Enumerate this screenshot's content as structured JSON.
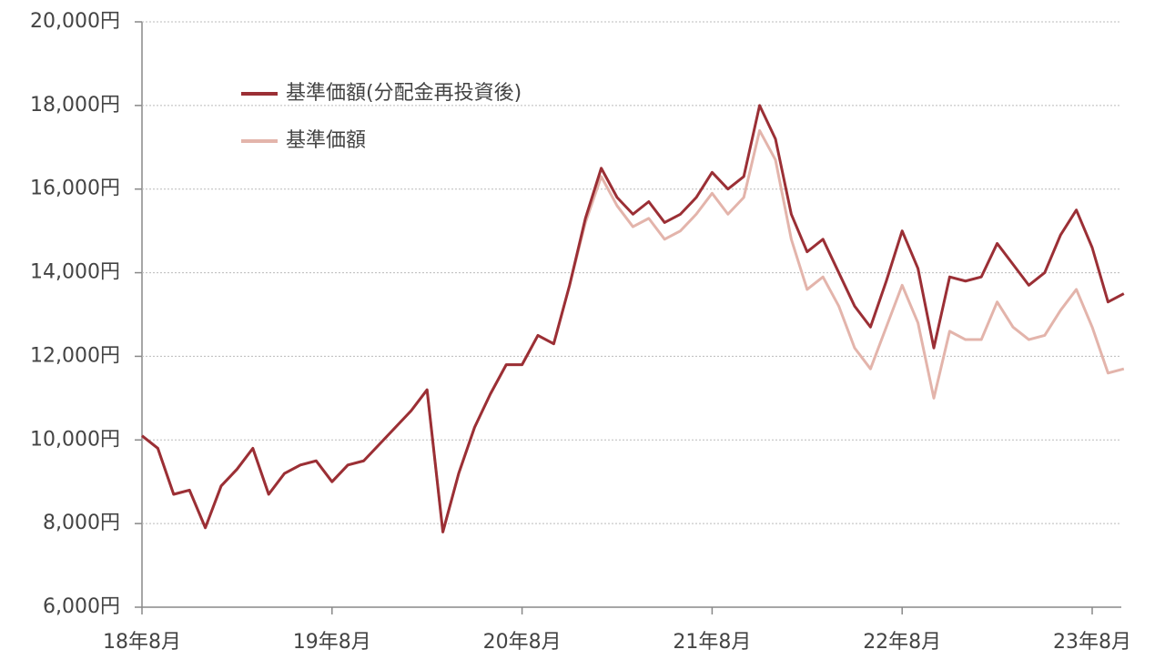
{
  "chart_data": {
    "type": "line",
    "categories": [
      "18年8月",
      null,
      null,
      null,
      null,
      null,
      null,
      null,
      null,
      null,
      null,
      null,
      "19年8月",
      null,
      null,
      null,
      null,
      null,
      null,
      null,
      null,
      null,
      null,
      null,
      "20年8月",
      null,
      null,
      null,
      null,
      null,
      null,
      null,
      null,
      null,
      null,
      null,
      "21年8月",
      null,
      null,
      null,
      null,
      null,
      null,
      null,
      null,
      null,
      null,
      null,
      "22年8月",
      null,
      null,
      null,
      null,
      null,
      null,
      null,
      null,
      null,
      null,
      null,
      "23年8月",
      null,
      null
    ],
    "series": [
      {
        "name": "基準価額(分配金再投資後)",
        "color": "#9b2f35",
        "values": [
          10100,
          9800,
          8700,
          8800,
          7900,
          8900,
          9300,
          9800,
          8700,
          9200,
          9400,
          9500,
          9000,
          9400,
          9500,
          9900,
          10300,
          10700,
          11200,
          7800,
          9200,
          10300,
          11100,
          11800,
          11800,
          12500,
          12300,
          13700,
          15300,
          16500,
          15800,
          15400,
          15700,
          15200,
          15400,
          15800,
          16400,
          16000,
          16300,
          18000,
          17200,
          15400,
          14500,
          14800,
          14000,
          13200,
          12700,
          13800,
          15000,
          14100,
          12200,
          13900,
          13800,
          13900,
          14700,
          14200,
          13700,
          14000,
          14900,
          15500,
          14600,
          13300,
          13500
        ]
      },
      {
        "name": "基準価額",
        "color": "#e3b4ab",
        "values": [
          10100,
          9800,
          8700,
          8800,
          7900,
          8900,
          9300,
          9800,
          8700,
          9200,
          9400,
          9500,
          9000,
          9400,
          9500,
          9900,
          10300,
          10700,
          11200,
          7800,
          9200,
          10300,
          11100,
          11800,
          11800,
          12500,
          12300,
          13700,
          15200,
          16300,
          15600,
          15100,
          15300,
          14800,
          15000,
          15400,
          15900,
          15400,
          15800,
          17400,
          16700,
          14800,
          13600,
          13900,
          13200,
          12200,
          11700,
          12700,
          13700,
          12800,
          11000,
          12600,
          12400,
          12400,
          13300,
          12700,
          12400,
          12500,
          13100,
          13600,
          12700,
          11600,
          11700
        ]
      }
    ],
    "ylim": [
      6000,
      20000
    ],
    "yticks": [
      {
        "value": 6000,
        "label": "6,000円"
      },
      {
        "value": 8000,
        "label": "8,000円"
      },
      {
        "value": 10000,
        "label": "10,000円"
      },
      {
        "value": 12000,
        "label": "12,000円"
      },
      {
        "value": 14000,
        "label": "14,000円"
      },
      {
        "value": 16000,
        "label": "16,000円"
      },
      {
        "value": 18000,
        "label": "18,000円"
      },
      {
        "value": 20000,
        "label": "20,000円"
      }
    ],
    "grid": true
  }
}
